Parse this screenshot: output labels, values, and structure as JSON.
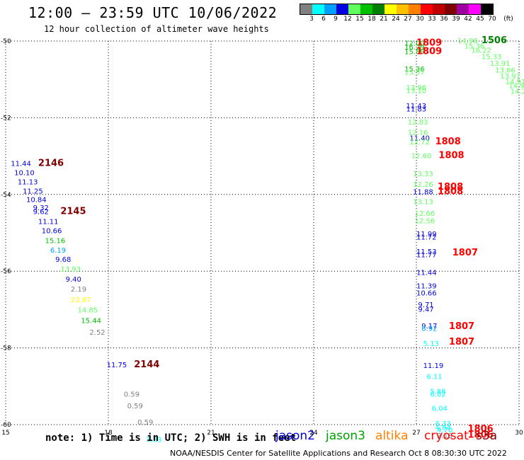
{
  "title": "12:00 – 23:59 UTC 10/06/2022",
  "subtitle": "12 hour collection of altimeter wave heights",
  "colorbar": {
    "labels": [
      "3",
      "6",
      "9",
      "12",
      "15",
      "18",
      "21",
      "24",
      "27",
      "30",
      "33",
      "36",
      "39",
      "42",
      "45",
      "70",
      "(ft)"
    ],
    "colors": [
      "#808080",
      "#00ffff",
      "#00a0ff",
      "#0000e0",
      "#60ff60",
      "#00c000",
      "#008000",
      "#ffff00",
      "#ffc000",
      "#ff8000",
      "#ff0000",
      "#c00000",
      "#800000",
      "#a000a0",
      "#ff00ff",
      "#000000"
    ]
  },
  "axes": {
    "x_ticks": [
      "15",
      "18",
      "21",
      "24",
      "27",
      "30"
    ],
    "y_ticks": [
      "-50",
      "-52",
      "-54",
      "-56",
      "-58",
      "-60"
    ],
    "xlim": [
      15,
      30
    ],
    "ylim": [
      -60,
      -50
    ]
  },
  "markers": [
    {
      "text": "12:00",
      "lon": 26.65,
      "lat": -50.05,
      "c": "#00c000"
    },
    {
      "text": "1809",
      "lon": 27.0,
      "lat": -50.05,
      "c": "#ff0000",
      "big": true
    },
    {
      "text": "16.29",
      "lon": 26.65,
      "lat": -50.15,
      "c": "#00c000"
    },
    {
      "text": "15.89",
      "lon": 26.65,
      "lat": -50.27,
      "c": "#00c000"
    },
    {
      "text": "1809",
      "lon": 27.0,
      "lat": -50.27,
      "c": "#ff0000",
      "big": true
    },
    {
      "text": "15.36",
      "lon": 26.65,
      "lat": -50.72,
      "c": "#00c000"
    },
    {
      "text": "15.37",
      "lon": 26.65,
      "lat": -50.8,
      "c": "#60ff60"
    },
    {
      "text": "13.96",
      "lon": 26.7,
      "lat": -51.2,
      "c": "#60ff60"
    },
    {
      "text": "13.10",
      "lon": 26.7,
      "lat": -51.28,
      "c": "#60ff60"
    },
    {
      "text": "11.43",
      "lon": 26.7,
      "lat": -51.68,
      "c": "#0000e0"
    },
    {
      "text": "11.83",
      "lon": 26.7,
      "lat": -51.76,
      "c": "#0000e0"
    },
    {
      "text": "12.83",
      "lon": 26.75,
      "lat": -52.1,
      "c": "#60ff60"
    },
    {
      "text": "12.16",
      "lon": 26.75,
      "lat": -52.37,
      "c": "#60ff60"
    },
    {
      "text": "11.40",
      "lon": 26.8,
      "lat": -52.52,
      "c": "#0000e0"
    },
    {
      "text": "12.72",
      "lon": 26.8,
      "lat": -52.62,
      "c": "#60ff60"
    },
    {
      "text": "1808",
      "lon": 27.55,
      "lat": -52.62,
      "c": "#ff0000",
      "big": true
    },
    {
      "text": "12.60",
      "lon": 26.85,
      "lat": -52.98,
      "c": "#60ff60"
    },
    {
      "text": "1808",
      "lon": 27.65,
      "lat": -52.98,
      "c": "#ff0000",
      "big": true
    },
    {
      "text": "13.33",
      "lon": 26.9,
      "lat": -53.45,
      "c": "#60ff60"
    },
    {
      "text": "12.26",
      "lon": 26.9,
      "lat": -53.73,
      "c": "#60ff60"
    },
    {
      "text": "1808",
      "lon": 27.62,
      "lat": -53.8,
      "c": "#ff0000",
      "big": true
    },
    {
      "text": "11.88",
      "lon": 26.9,
      "lat": -53.92,
      "c": "#0000e0"
    },
    {
      "text": "1808",
      "lon": 27.62,
      "lat": -53.92,
      "c": "#ff0000",
      "big": true
    },
    {
      "text": "13.13",
      "lon": 26.9,
      "lat": -54.18,
      "c": "#60ff60"
    },
    {
      "text": "12.66",
      "lon": 26.95,
      "lat": -54.48,
      "c": "#60ff60"
    },
    {
      "text": "12.56",
      "lon": 26.95,
      "lat": -54.68,
      "c": "#60ff60"
    },
    {
      "text": "11.99",
      "lon": 27.0,
      "lat": -55.02,
      "c": "#0000e0"
    },
    {
      "text": "11.72",
      "lon": 27.0,
      "lat": -55.1,
      "c": "#0000e0"
    },
    {
      "text": "11.53",
      "lon": 27.0,
      "lat": -55.48,
      "c": "#0000e0"
    },
    {
      "text": "11.77",
      "lon": 27.0,
      "lat": -55.56,
      "c": "#0000e0"
    },
    {
      "text": "1807",
      "lon": 28.05,
      "lat": -55.52,
      "c": "#ff0000",
      "big": true
    },
    {
      "text": "11.44",
      "lon": 27.0,
      "lat": -56.02,
      "c": "#0000e0"
    },
    {
      "text": "11.39",
      "lon": 27.0,
      "lat": -56.37,
      "c": "#0000e0"
    },
    {
      "text": "10.66",
      "lon": 27.0,
      "lat": -56.56,
      "c": "#0000e0"
    },
    {
      "text": "9.71",
      "lon": 27.05,
      "lat": -56.86,
      "c": "#0000e0"
    },
    {
      "text": "9.47",
      "lon": 27.05,
      "lat": -56.98,
      "c": "#0000e0"
    },
    {
      "text": "9.17",
      "lon": 27.15,
      "lat": -57.42,
      "c": "#0000e0"
    },
    {
      "text": "8.92",
      "lon": 27.15,
      "lat": -57.48,
      "c": "#00a0ff"
    },
    {
      "text": "1807",
      "lon": 27.95,
      "lat": -57.44,
      "c": "#ff0000",
      "big": true
    },
    {
      "text": "5.13",
      "lon": 27.2,
      "lat": -57.88,
      "c": "#00ffff"
    },
    {
      "text": "1807",
      "lon": 27.95,
      "lat": -57.84,
      "c": "#ff0000",
      "big": true
    },
    {
      "text": "11.19",
      "lon": 27.2,
      "lat": -58.45,
      "c": "#0000e0"
    },
    {
      "text": "6.11",
      "lon": 27.3,
      "lat": -58.74,
      "c": "#00ffff"
    },
    {
      "text": "5.88",
      "lon": 27.4,
      "lat": -59.12,
      "c": "#00ffff"
    },
    {
      "text": "6.02",
      "lon": 27.4,
      "lat": -59.2,
      "c": "#00ffff"
    },
    {
      "text": "6.04",
      "lon": 27.45,
      "lat": -59.57,
      "c": "#00ffff"
    },
    {
      "text": "6.33",
      "lon": 27.55,
      "lat": -59.96,
      "c": "#00ffff"
    },
    {
      "text": "4.84",
      "lon": 27.55,
      "lat": -60.06,
      "c": "#00ffff"
    },
    {
      "text": "4.70",
      "lon": 27.6,
      "lat": -60.13,
      "c": "#00ffff"
    },
    {
      "text": "2.18",
      "lon": 27.6,
      "lat": -60.28,
      "c": "#808080"
    },
    {
      "text": "1806",
      "lon": 28.5,
      "lat": -60.11,
      "c": "#ff0000",
      "big": true
    },
    {
      "text": "1806",
      "lon": 28.5,
      "lat": -60.27,
      "c": "#ff0000",
      "big": true
    },
    {
      "text": "14.98",
      "lon": 28.2,
      "lat": -49.98,
      "c": "#60ff60"
    },
    {
      "text": "1506",
      "lon": 28.9,
      "lat": -49.98,
      "c": "#008000",
      "big": true
    },
    {
      "text": "15.36",
      "lon": 28.4,
      "lat": -50.12,
      "c": "#60ff60"
    },
    {
      "text": "16.22",
      "lon": 28.6,
      "lat": -50.23,
      "c": "#60ff60"
    },
    {
      "text": "15.33",
      "lon": 28.9,
      "lat": -50.4,
      "c": "#60ff60"
    },
    {
      "text": "13.91",
      "lon": 29.15,
      "lat": -50.57,
      "c": "#60ff60"
    },
    {
      "text": "13.66",
      "lon": 29.3,
      "lat": -50.75,
      "c": "#60ff60"
    },
    {
      "text": "13.97",
      "lon": 29.45,
      "lat": -50.9,
      "c": "#60ff60"
    },
    {
      "text": "14.91",
      "lon": 29.6,
      "lat": -51.05,
      "c": "#60ff60"
    },
    {
      "text": "14.93",
      "lon": 29.7,
      "lat": -51.15,
      "c": "#60ff60"
    },
    {
      "text": "14.27",
      "lon": 29.75,
      "lat": -51.3,
      "c": "#60ff60"
    },
    {
      "text": "11.44",
      "lon": 15.15,
      "lat": -53.18,
      "c": "#0000e0"
    },
    {
      "text": "2146",
      "lon": 15.95,
      "lat": -53.18,
      "c": "#800000",
      "big": true
    },
    {
      "text": "10.10",
      "lon": 15.25,
      "lat": -53.42,
      "c": "#0000e0"
    },
    {
      "text": "11.13",
      "lon": 15.35,
      "lat": -53.66,
      "c": "#0000e0"
    },
    {
      "text": "11.25",
      "lon": 15.5,
      "lat": -53.9,
      "c": "#0000e0"
    },
    {
      "text": "10.84",
      "lon": 15.6,
      "lat": -54.12,
      "c": "#0000e0"
    },
    {
      "text": "9.32",
      "lon": 15.8,
      "lat": -54.34,
      "c": "#0000e0"
    },
    {
      "text": "9.62",
      "lon": 15.8,
      "lat": -54.44,
      "c": "#0000e0"
    },
    {
      "text": "2145",
      "lon": 16.6,
      "lat": -54.44,
      "c": "#800000",
      "big": true
    },
    {
      "text": "11.11",
      "lon": 15.95,
      "lat": -54.7,
      "c": "#0000e0"
    },
    {
      "text": "10.66",
      "lon": 16.05,
      "lat": -54.94,
      "c": "#0000e0"
    },
    {
      "text": "15.16",
      "lon": 16.15,
      "lat": -55.19,
      "c": "#00c000"
    },
    {
      "text": "6.19",
      "lon": 16.3,
      "lat": -55.44,
      "c": "#00a0ff"
    },
    {
      "text": "9.68",
      "lon": 16.45,
      "lat": -55.68,
      "c": "#0000e0"
    },
    {
      "text": "13.93",
      "lon": 16.6,
      "lat": -55.93,
      "c": "#60ff60"
    },
    {
      "text": "9.40",
      "lon": 16.75,
      "lat": -56.2,
      "c": "#0000e0"
    },
    {
      "text": "2.19",
      "lon": 16.9,
      "lat": -56.46,
      "c": "#808080"
    },
    {
      "text": "23.87",
      "lon": 16.9,
      "lat": -56.73,
      "c": "#ffff00"
    },
    {
      "text": "14.85",
      "lon": 17.1,
      "lat": -57.0,
      "c": "#60ff60"
    },
    {
      "text": "15.44",
      "lon": 17.2,
      "lat": -57.28,
      "c": "#00c000"
    },
    {
      "text": "2.52",
      "lon": 17.45,
      "lat": -57.58,
      "c": "#808080"
    },
    {
      "text": "11.75",
      "lon": 17.95,
      "lat": -58.43,
      "c": "#0000e0"
    },
    {
      "text": "2144",
      "lon": 18.75,
      "lat": -58.43,
      "c": "#800000",
      "big": true
    },
    {
      "text": "0.59",
      "lon": 18.45,
      "lat": -59.2,
      "c": "#808080"
    },
    {
      "text": "0.59",
      "lon": 18.55,
      "lat": -59.5,
      "c": "#808080"
    },
    {
      "text": "0.59",
      "lon": 18.85,
      "lat": -59.93,
      "c": "#808080"
    },
    {
      "text": "3.33",
      "lon": 19.1,
      "lat": -60.38,
      "c": "#00ffff"
    }
  ],
  "note": "note: 1) Time is in UTC; 2) SWH is in feet",
  "legend": [
    {
      "name": "jason2",
      "color": "#0000e0"
    },
    {
      "name": "jason3",
      "color": "#00a000"
    },
    {
      "name": "altika",
      "color": "#ff8000"
    },
    {
      "name": "cryosat",
      "color": "#ff0000"
    },
    {
      "name": "s3a",
      "color": "#800000"
    }
  ],
  "footer": "NOAA/NESDIS Center for Satellite Applications and Research   Oct  8 08:30:30 UTC 2022"
}
